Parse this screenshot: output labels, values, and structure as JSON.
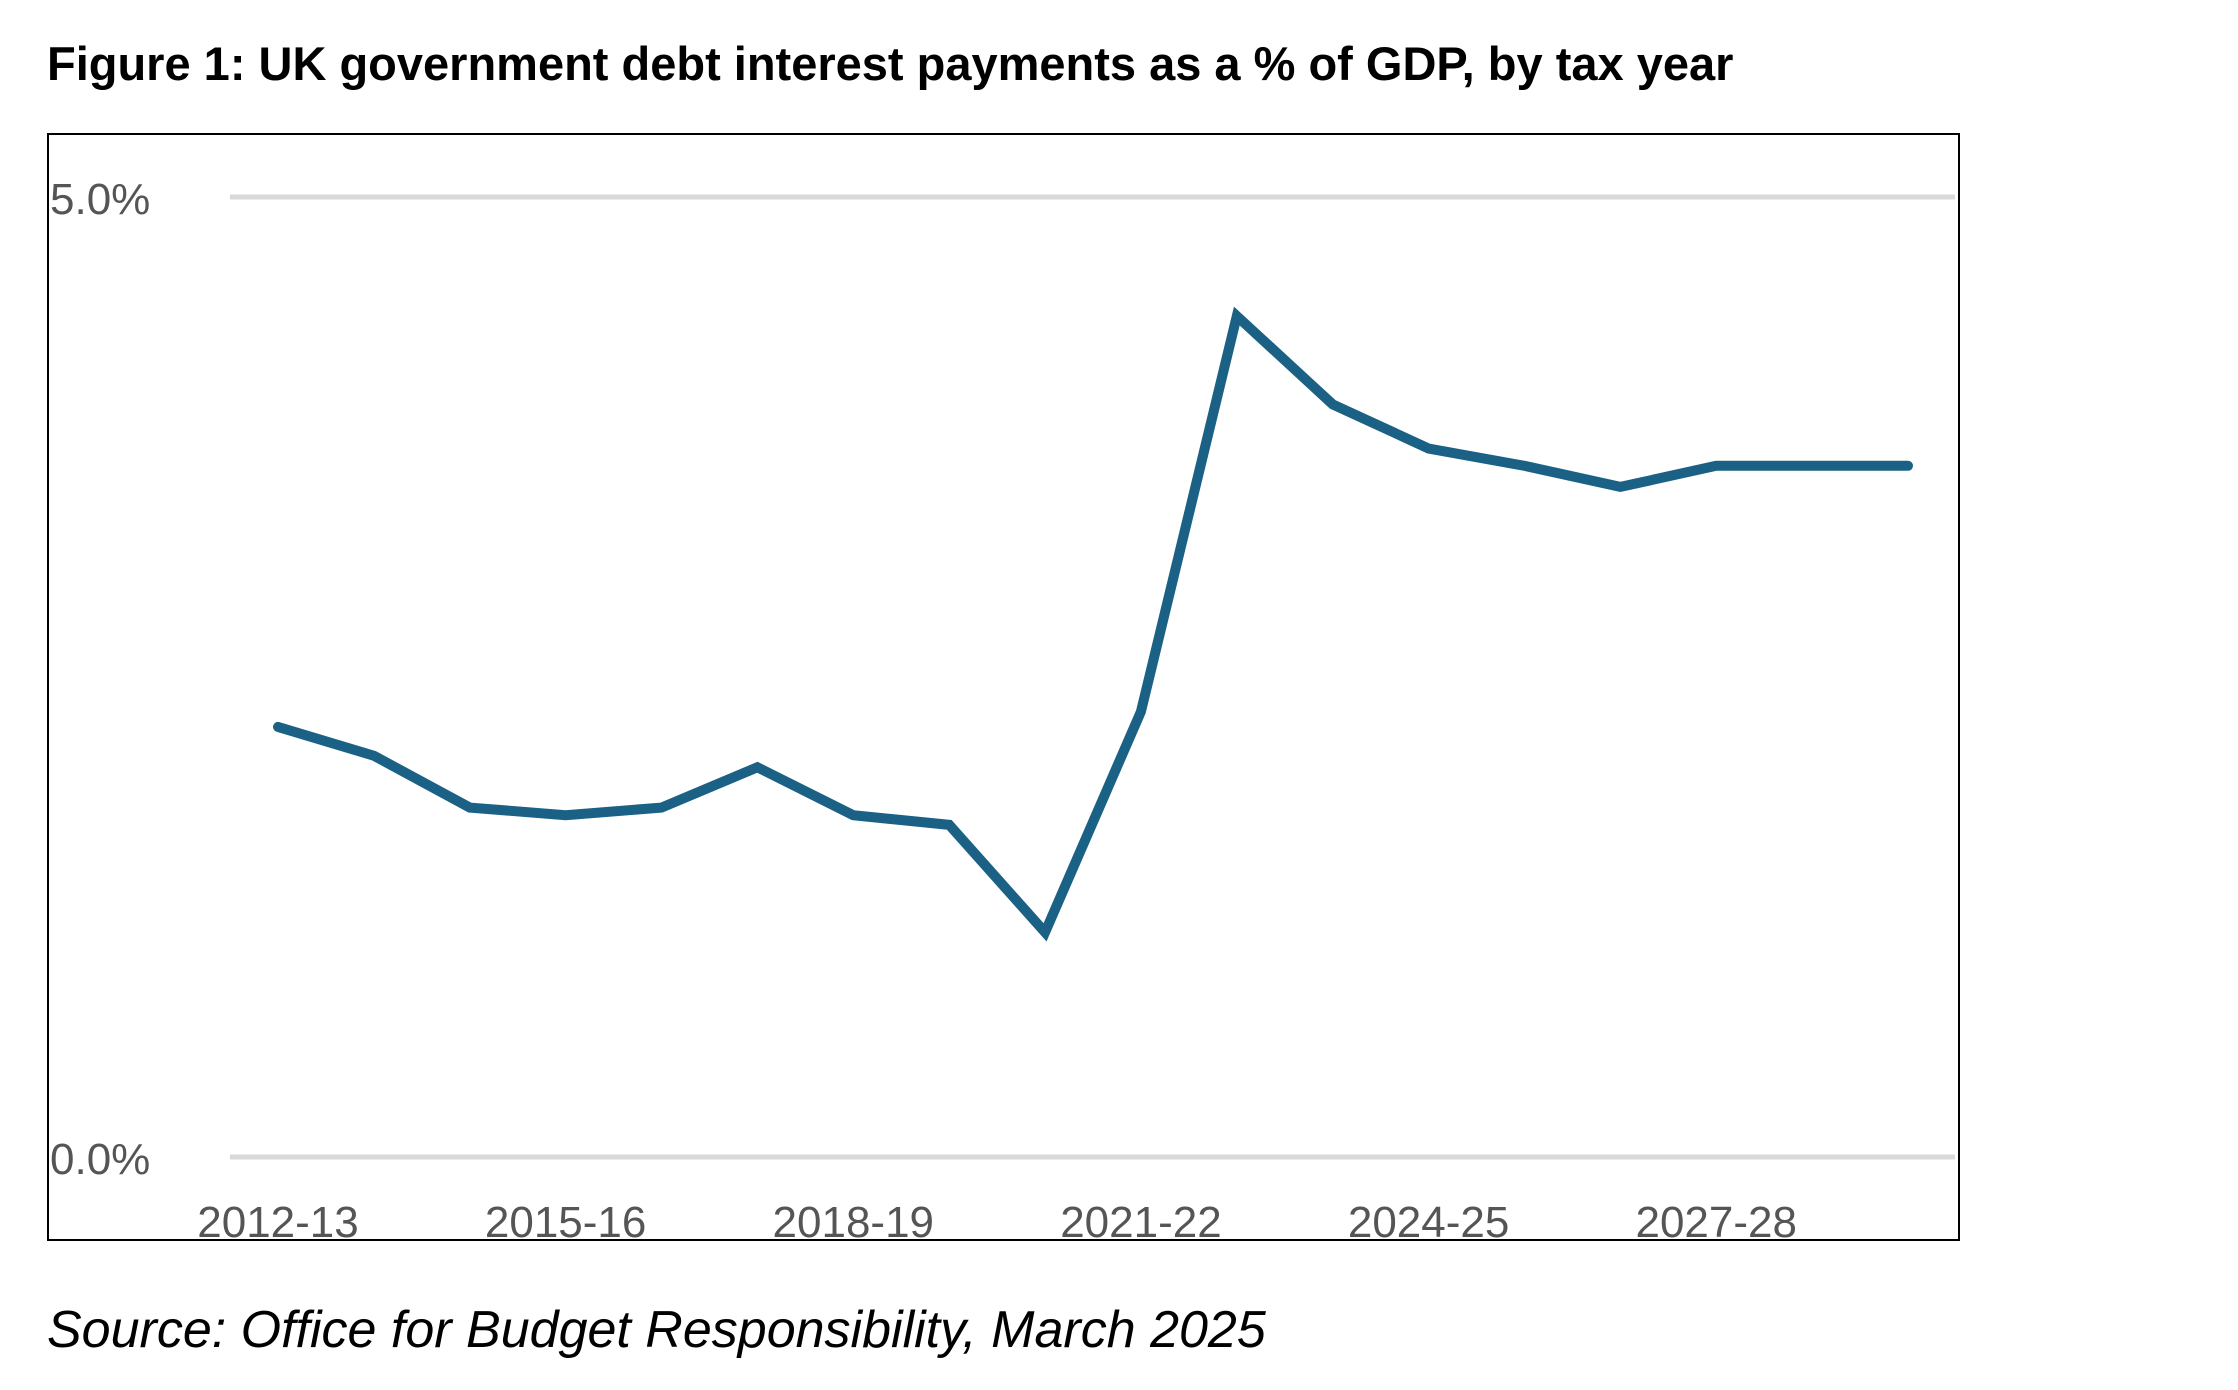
{
  "chart_data": {
    "type": "line",
    "title": "Figure 1: UK government debt interest payments as a % of GDP, by tax year",
    "source": "Source: Office for Budget Responsibility, March 2025",
    "xlabel": "",
    "ylabel": "",
    "ylim": [
      0,
      5
    ],
    "y_ticks": [
      {
        "value": 0,
        "label": "0.0%"
      },
      {
        "value": 5,
        "label": "5.0%"
      }
    ],
    "x_tick_labels": [
      "2012-13",
      "2015-16",
      "2018-19",
      "2021-22",
      "2024-25",
      "2027-28"
    ],
    "categories": [
      "2012-13",
      "2013-14",
      "2014-15",
      "2015-16",
      "2016-17",
      "2017-18",
      "2018-19",
      "2019-20",
      "2020-21",
      "2021-22",
      "2022-23",
      "2023-24",
      "2024-25",
      "2025-26",
      "2026-27",
      "2027-28",
      "2028-29",
      "2029-30"
    ],
    "series": [
      {
        "name": "Debt interest (% of GDP)",
        "color": "#1a6185",
        "values": [
          2.24,
          2.09,
          1.82,
          1.78,
          1.82,
          2.03,
          1.78,
          1.73,
          1.17,
          2.32,
          4.38,
          3.92,
          3.69,
          3.6,
          3.49,
          3.6,
          3.6,
          3.6
        ]
      }
    ],
    "grid": "horizontal",
    "legend": "none"
  }
}
